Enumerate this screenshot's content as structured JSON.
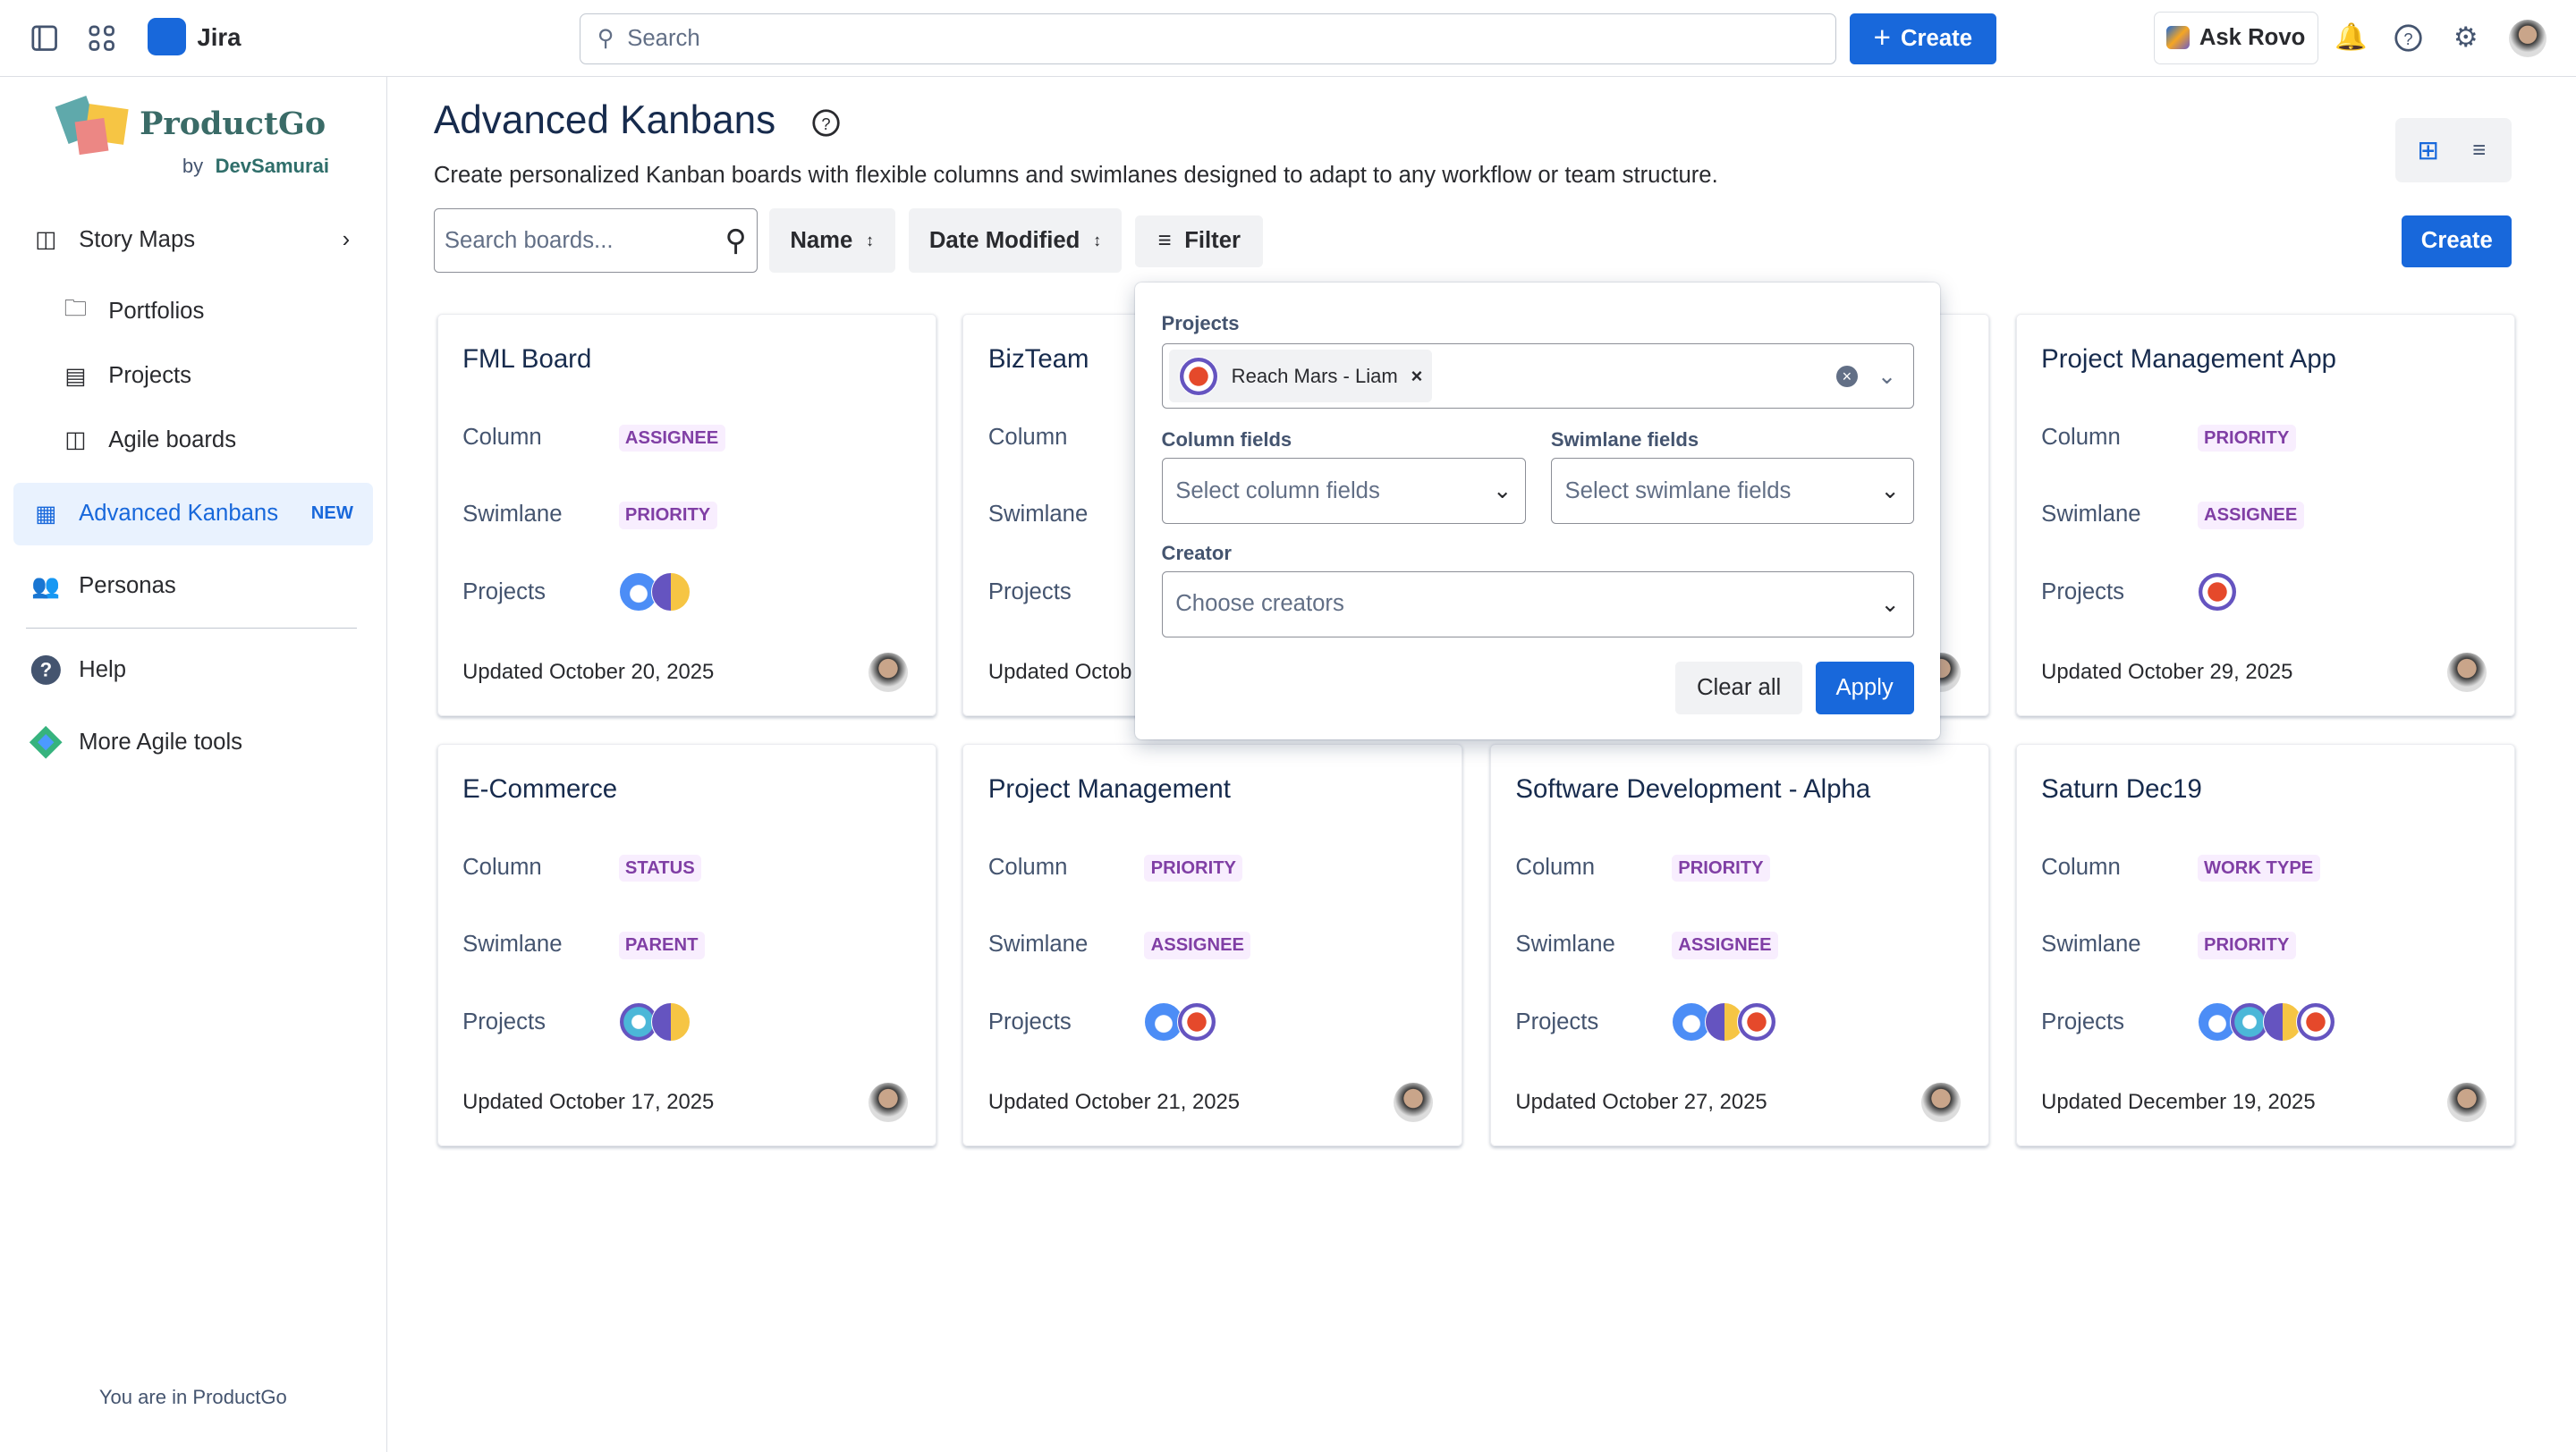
{
  "topbar": {
    "app_name": "Jira",
    "search_placeholder": "Search",
    "create_label": "Create",
    "rovo_label": "Ask Rovo"
  },
  "sidebar": {
    "brand": "ProductGo",
    "brand_by": "by",
    "brand_company": "DevSamurai",
    "items": [
      {
        "label": "Story Maps",
        "icon": "story-map-icon"
      },
      {
        "label": "Portfolios",
        "icon": "folder-icon"
      },
      {
        "label": "Projects",
        "icon": "projects-icon"
      },
      {
        "label": "Agile boards",
        "icon": "board-icon"
      },
      {
        "label": "Advanced Kanbans",
        "badge": "NEW",
        "icon": "kanban-icon",
        "active": true
      },
      {
        "label": "Personas",
        "icon": "people-icon"
      },
      {
        "label": "Help",
        "icon": "help-icon"
      },
      {
        "label": "More Agile tools",
        "icon": "diamond-icon"
      }
    ],
    "footer": "You are in ProductGo"
  },
  "main": {
    "title": "Advanced Kanbans",
    "description": "Create personalized Kanban boards with flexible columns and swimlanes designed to adapt to any workflow or team structure.",
    "search_placeholder": "Search boards...",
    "sort_name": "Name",
    "sort_date": "Date Modified",
    "filter_label": "Filter",
    "create_label": "Create"
  },
  "labels": {
    "column": "Column",
    "swimlane": "Swimlane",
    "projects": "Projects",
    "updated": "Updated"
  },
  "boards": [
    {
      "title": "FML Board",
      "column": "ASSIGNEE",
      "swimlane": "PRIORITY",
      "projects": [
        "cloud",
        "bird"
      ],
      "updated": "October 20, 2025"
    },
    {
      "title": "BizTeam",
      "column": "",
      "swimlane": "",
      "projects": [],
      "updated": "Octob"
    },
    {
      "title": "",
      "column": "",
      "swimlane": "",
      "projects": [],
      "updated": ""
    },
    {
      "title": "Project Management App",
      "column": "PRIORITY",
      "swimlane": "ASSIGNEE",
      "projects": [
        "mars"
      ],
      "updated": "October 29, 2025"
    },
    {
      "title": "E-Commerce",
      "column": "STATUS",
      "swimlane": "PARENT",
      "projects": [
        "robot",
        "bird"
      ],
      "updated": "October 17, 2025"
    },
    {
      "title": "Project Management",
      "column": "PRIORITY",
      "swimlane": "ASSIGNEE",
      "projects": [
        "cloud",
        "mars"
      ],
      "updated": "October 21, 2025"
    },
    {
      "title": "Software Development - Alpha",
      "column": "PRIORITY",
      "swimlane": "ASSIGNEE",
      "projects": [
        "cloud",
        "bird",
        "mars"
      ],
      "updated": "October 27, 2025"
    },
    {
      "title": "Saturn Dec19",
      "column": "WORK TYPE",
      "swimlane": "PRIORITY",
      "projects": [
        "cloud",
        "robot",
        "bird",
        "mars"
      ],
      "updated": "December 19, 2025"
    }
  ],
  "filter": {
    "projects_label": "Projects",
    "selected_project": "Reach Mars - Liam",
    "column_label": "Column fields",
    "column_placeholder": "Select column fields",
    "swimlane_label": "Swimlane fields",
    "swimlane_placeholder": "Select swimlane fields",
    "creator_label": "Creator",
    "creator_placeholder": "Choose creators",
    "clear_label": "Clear all",
    "apply_label": "Apply"
  },
  "colors": {
    "accent": "#1868db",
    "tag_text": "#803fa5",
    "tag_bg": "#f8eefe"
  }
}
